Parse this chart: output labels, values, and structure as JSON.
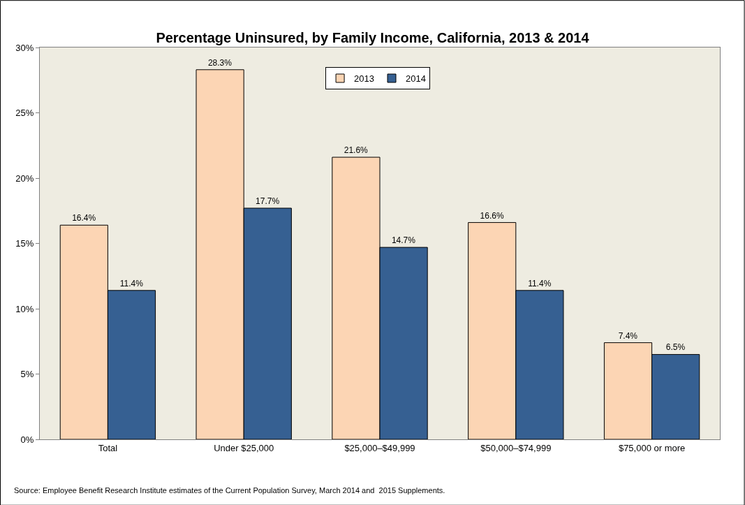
{
  "chart_data": {
    "type": "bar",
    "title": "Percentage Uninsured, by Family Income, California, 2013 & 2014",
    "categories": [
      "Total",
      "Under $25,000",
      "$25,000–$49,999",
      "$50,000–$74,999",
      "$75,000 or more"
    ],
    "series": [
      {
        "name": "2013",
        "color": "#fcd5b4",
        "values": [
          16.4,
          28.3,
          21.6,
          16.6,
          7.4
        ],
        "value_labels": [
          "16.4%",
          "28.3%",
          "21.6%",
          "16.6%",
          "7.4%"
        ]
      },
      {
        "name": "2014",
        "color": "#366092",
        "values": [
          11.4,
          17.7,
          14.7,
          11.4,
          6.5
        ],
        "value_labels": [
          "11.4%",
          "17.7%",
          "14.7%",
          "11.4%",
          "6.5%"
        ]
      }
    ],
    "ylim": [
      0,
      30
    ],
    "yticks": [
      {
        "value": 0,
        "label": "0%"
      },
      {
        "value": 5,
        "label": "5%"
      },
      {
        "value": 10,
        "label": "10%"
      },
      {
        "value": 15,
        "label": "15%"
      },
      {
        "value": 20,
        "label": "20%"
      },
      {
        "value": 25,
        "label": "25%"
      },
      {
        "value": 30,
        "label": "30%"
      }
    ],
    "grid": false,
    "legend": "top",
    "annotations": [
      "Source: Employee Benefit Research Institute estimates of the Current Population Survey, March 2014 and  2015 Supplements."
    ]
  }
}
